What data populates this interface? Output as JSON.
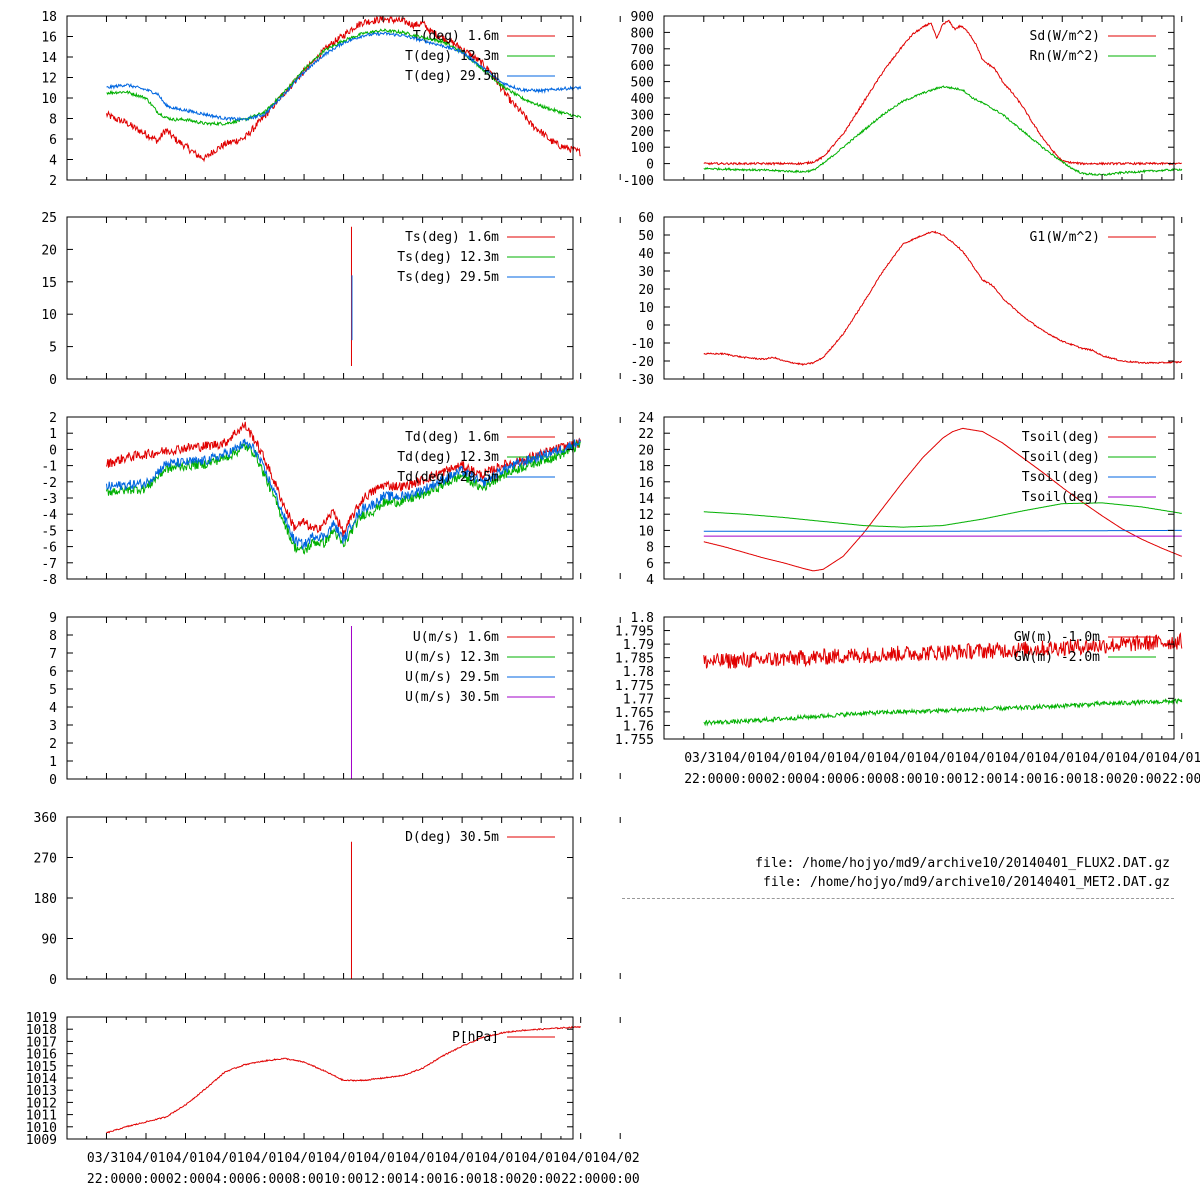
{
  "chart_data": [
    {
      "id": "t",
      "type": "line",
      "ylim": [
        2,
        18
      ],
      "yticks": [
        2,
        4,
        6,
        8,
        10,
        12,
        14,
        16,
        18
      ],
      "series": [
        {
          "name": "T(deg)  1.6m",
          "color": "#e00000",
          "noise": 0.35,
          "x": [
            0,
            0.4,
            1,
            1.4,
            2,
            2.6,
            3,
            3.2,
            3.6,
            4,
            4.6,
            5,
            5.4,
            6,
            7,
            8,
            9,
            10,
            11,
            11.4,
            12,
            12.5,
            13,
            14,
            15,
            15.6,
            16,
            16.4,
            17,
            17.5,
            18,
            19,
            19.5,
            20,
            20.5,
            21,
            21.5,
            22,
            22.5,
            23,
            23.5,
            24
          ],
          "y": [
            8.4,
            8,
            7.6,
            7.1,
            6.5,
            5.8,
            6.9,
            6.5,
            5.8,
            5.3,
            4.4,
            4.1,
            4.8,
            5.5,
            6.1,
            8.2,
            10.5,
            12.6,
            14.6,
            15.3,
            16.1,
            16.9,
            17.4,
            17.7,
            17.5,
            17.1,
            17.3,
            16.5,
            15.9,
            15.4,
            14.8,
            13.4,
            12.4,
            10.9,
            9.6,
            8.6,
            7.4,
            6.7,
            5.8,
            5.3,
            5,
            4.7
          ]
        },
        {
          "name": "T(deg) 12.3m",
          "color": "#00b000",
          "noise": 0.15,
          "x": [
            0,
            1,
            2,
            2.6,
            3,
            3.4,
            4,
            5,
            6,
            7,
            8,
            9,
            10,
            11,
            12,
            13,
            14,
            15,
            16,
            17,
            18,
            19,
            20,
            21,
            22,
            23,
            24
          ],
          "y": [
            10.5,
            10.6,
            10,
            8.6,
            8.1,
            7.9,
            7.9,
            7.5,
            7.5,
            7.9,
            8.6,
            10.6,
            12.8,
            14.6,
            15.6,
            16.3,
            16.6,
            16.4,
            15.9,
            15.5,
            14.5,
            12.9,
            11.2,
            10,
            9.2,
            8.6,
            8.1
          ]
        },
        {
          "name": "T(deg) 29.5m",
          "color": "#0066e0",
          "noise": 0.15,
          "x": [
            0,
            1,
            1.4,
            2,
            2.6,
            3,
            3.4,
            4,
            5,
            6,
            7,
            8,
            9,
            10,
            11,
            12,
            13,
            14,
            15,
            16,
            17,
            18,
            19,
            20,
            21,
            22,
            23,
            24
          ],
          "y": [
            11,
            11.3,
            11.1,
            10.8,
            10.4,
            9.3,
            9,
            8.8,
            8.4,
            8,
            7.9,
            8.4,
            10.4,
            12.5,
            14.2,
            15.4,
            16.1,
            16.3,
            16.1,
            15.6,
            15.1,
            14.5,
            13,
            11.5,
            10.8,
            10.7,
            10.9,
            11
          ]
        }
      ]
    },
    {
      "id": "sd",
      "type": "line",
      "ylim": [
        -100,
        900
      ],
      "yticks": [
        -100,
        0,
        100,
        200,
        300,
        400,
        500,
        600,
        700,
        800,
        900
      ],
      "series": [
        {
          "name": "Sd(W/m^2)",
          "color": "#e00000",
          "noise": 6,
          "x": [
            0,
            5,
            5.5,
            6,
            7,
            8,
            9,
            10,
            10.5,
            11,
            11.4,
            11.7,
            12,
            12.3,
            12.6,
            12.9,
            13.3,
            13.7,
            14,
            14.6,
            15,
            15.5,
            16,
            16.5,
            17,
            17.5,
            18,
            18.5,
            19,
            24
          ],
          "y": [
            0,
            0,
            10,
            40,
            180,
            370,
            560,
            720,
            790,
            830,
            860,
            760,
            850,
            870,
            820,
            840,
            800,
            720,
            630,
            580,
            500,
            430,
            350,
            250,
            160,
            80,
            15,
            5,
            0,
            0
          ]
        },
        {
          "name": "Rn(W/m^2)",
          "color": "#00b000",
          "noise": 6,
          "x": [
            0,
            3,
            5,
            5.5,
            6,
            7,
            8,
            9,
            10,
            11,
            11.5,
            12,
            12.5,
            13,
            13.5,
            14,
            15,
            16,
            17,
            18,
            18.5,
            19,
            20,
            21,
            24
          ],
          "y": [
            -30,
            -40,
            -50,
            -40,
            0,
            100,
            200,
            300,
            380,
            430,
            450,
            470,
            460,
            450,
            400,
            370,
            300,
            200,
            100,
            10,
            -30,
            -60,
            -70,
            -55,
            -35
          ]
        }
      ]
    },
    {
      "id": "ts",
      "type": "line",
      "ylim": [
        0,
        25
      ],
      "yticks": [
        0,
        5,
        10,
        15,
        20,
        25
      ],
      "spike": {
        "x": 12.4,
        "segments": [
          {
            "color": "#e00000",
            "y0": 2,
            "y1": 23.5
          },
          {
            "color": "#0066e0",
            "y0": 6,
            "y1": 16
          }
        ]
      },
      "series": [
        {
          "name": "Ts(deg)  1.6m",
          "color": "#e00000"
        },
        {
          "name": "Ts(deg) 12.3m",
          "color": "#00b000"
        },
        {
          "name": "Ts(deg) 29.5m",
          "color": "#0066e0"
        }
      ]
    },
    {
      "id": "g1",
      "type": "line",
      "ylim": [
        -30,
        60
      ],
      "yticks": [
        -30,
        -20,
        -10,
        0,
        10,
        20,
        30,
        40,
        50,
        60
      ],
      "series": [
        {
          "name": "G1(W/m^2)",
          "color": "#e00000",
          "noise": 0.4,
          "x": [
            0,
            1,
            2,
            3,
            3.5,
            4,
            5,
            5.5,
            6,
            7,
            8,
            9,
            10,
            11,
            11.5,
            12,
            12.5,
            13,
            14,
            14.5,
            15,
            16,
            17,
            18,
            19,
            19.5,
            20,
            21,
            22,
            23,
            24
          ],
          "y": [
            -16,
            -16,
            -18,
            -19,
            -18,
            -20,
            -22,
            -21,
            -18,
            -5,
            12,
            30,
            45,
            50,
            52,
            50,
            46,
            41,
            25,
            22,
            15,
            5,
            -3,
            -9,
            -13,
            -14,
            -17,
            -20,
            -21,
            -21,
            -20.5
          ]
        }
      ]
    },
    {
      "id": "td",
      "type": "line",
      "ylim": [
        -8,
        2
      ],
      "yticks": [
        -8,
        -7,
        -6,
        -5,
        -4,
        -3,
        -2,
        -1,
        0,
        1,
        2
      ],
      "series": [
        {
          "name": "Td(deg)  1.6m",
          "color": "#e00000",
          "noise": 0.3,
          "x": [
            0,
            1,
            2,
            3,
            4,
            5,
            6,
            6.5,
            7,
            7.5,
            8,
            8.5,
            9,
            9.5,
            10,
            10.5,
            11,
            11.5,
            12,
            12.5,
            13,
            13.5,
            14,
            15,
            16,
            17,
            18,
            19,
            20,
            21,
            22,
            23,
            24
          ],
          "y": [
            -0.9,
            -0.5,
            -0.3,
            -0.1,
            0.1,
            0.2,
            0.4,
            1,
            1.5,
            0.6,
            -0.6,
            -2,
            -3.5,
            -4.8,
            -4.5,
            -5,
            -4.6,
            -3.8,
            -5.2,
            -4,
            -3,
            -2.6,
            -2.2,
            -2.3,
            -1.9,
            -1.4,
            -1,
            -1.6,
            -1,
            -0.7,
            -0.3,
            0.1,
            0.4
          ]
        },
        {
          "name": "Td(deg) 12.3m",
          "color": "#00b000",
          "noise": 0.3,
          "x": [
            0,
            1,
            2,
            3,
            4,
            5,
            6,
            6.5,
            7,
            7.5,
            8,
            8.5,
            9,
            9.5,
            10,
            10.5,
            11,
            11.5,
            12,
            12.5,
            13,
            13.5,
            14,
            15,
            16,
            17,
            18,
            19,
            20,
            21,
            22,
            23,
            24
          ],
          "y": [
            -2.6,
            -2.5,
            -2.4,
            -1.2,
            -1,
            -0.9,
            -0.5,
            -0.2,
            0.2,
            -0.2,
            -1.6,
            -3,
            -4.5,
            -6,
            -6.3,
            -5.7,
            -5.8,
            -5,
            -6,
            -4.8,
            -4,
            -3.8,
            -3.3,
            -3.2,
            -2.8,
            -2.2,
            -1.6,
            -2.4,
            -1.6,
            -1.1,
            -0.7,
            -0.3,
            0.3
          ]
        },
        {
          "name": "Td(deg) 29.5m",
          "color": "#0066e0",
          "noise": 0.3,
          "x": [
            0,
            1,
            2,
            3,
            4,
            5,
            6,
            6.5,
            7,
            7.5,
            8,
            8.5,
            9,
            9.5,
            10,
            10.5,
            11,
            11.5,
            12,
            12.5,
            13,
            13.5,
            14,
            15,
            16,
            17,
            18,
            19,
            20,
            21,
            22,
            23,
            24
          ],
          "y": [
            -2.3,
            -2.2,
            -2.1,
            -0.9,
            -0.8,
            -0.7,
            -0.3,
            0,
            0.4,
            0,
            -1.3,
            -2.6,
            -4.2,
            -5.6,
            -5.9,
            -5.3,
            -5.4,
            -4.6,
            -5.6,
            -4.4,
            -3.6,
            -3.4,
            -2.9,
            -2.9,
            -2.5,
            -1.9,
            -1.3,
            -2.1,
            -1.3,
            -0.8,
            -0.4,
            0,
            0.5
          ]
        }
      ]
    },
    {
      "id": "tsoil",
      "type": "line",
      "ylim": [
        4,
        24
      ],
      "yticks": [
        4,
        6,
        8,
        10,
        12,
        14,
        16,
        18,
        20,
        22,
        24
      ],
      "series": [
        {
          "name": "Tsoil(deg)",
          "color": "#e00000",
          "noise": 0,
          "x": [
            0,
            1,
            2,
            3,
            4,
            5,
            5.5,
            6,
            7,
            8,
            9,
            10,
            11,
            12,
            12.5,
            13,
            14,
            15,
            16,
            17,
            18,
            19,
            20,
            21,
            22,
            23,
            24
          ],
          "y": [
            8.6,
            8,
            7.3,
            6.6,
            6,
            5.3,
            5,
            5.2,
            6.8,
            9.6,
            12.8,
            16,
            19,
            21.4,
            22.2,
            22.6,
            22.2,
            20.8,
            19,
            17.2,
            15.3,
            13.5,
            11.8,
            10.2,
            8.9,
            7.8,
            6.8
          ]
        },
        {
          "name": "Tsoil(deg)",
          "color": "#00b000",
          "noise": 0,
          "x": [
            0,
            2,
            4,
            6,
            8,
            10,
            12,
            14,
            16,
            18,
            20,
            22,
            24
          ],
          "y": [
            12.3,
            12,
            11.6,
            11.1,
            10.6,
            10.4,
            10.6,
            11.4,
            12.4,
            13.3,
            13.4,
            12.9,
            12.1
          ]
        },
        {
          "name": "Tsoil(deg)",
          "color": "#0066e0",
          "noise": 0,
          "x": [
            0,
            12,
            24
          ],
          "y": [
            9.9,
            9.9,
            10
          ]
        },
        {
          "name": "Tsoil(deg)",
          "color": "#a000c8",
          "noise": 0,
          "x": [
            0,
            12,
            24
          ],
          "y": [
            9.3,
            9.3,
            9.3
          ]
        }
      ]
    },
    {
      "id": "u",
      "type": "line",
      "ylim": [
        0,
        9
      ],
      "yticks": [
        0,
        1,
        2,
        3,
        4,
        5,
        6,
        7,
        8,
        9
      ],
      "spike": {
        "x": 12.4,
        "segments": [
          {
            "color": "#a000c8",
            "y0": 0,
            "y1": 8.5
          }
        ]
      },
      "series": [
        {
          "name": "U(m/s)  1.6m",
          "color": "#e00000"
        },
        {
          "name": "U(m/s) 12.3m",
          "color": "#00b000"
        },
        {
          "name": "U(m/s) 29.5m",
          "color": "#0066e0"
        },
        {
          "name": "U(m/s) 30.5m",
          "color": "#a000c8"
        }
      ]
    },
    {
      "id": "gw",
      "type": "line",
      "ylim": [
        1.755,
        1.8
      ],
      "yticks": [
        1.755,
        1.76,
        1.765,
        1.77,
        1.775,
        1.78,
        1.785,
        1.79,
        1.795,
        1.8
      ],
      "series": [
        {
          "name": "GW(m) -1.0m",
          "color": "#e00000",
          "noise": 0.003,
          "x": [
            0,
            4,
            8,
            12,
            16,
            20,
            24
          ],
          "y": [
            1.7835,
            1.7845,
            1.786,
            1.787,
            1.788,
            1.7895,
            1.791
          ]
        },
        {
          "name": "GW(m) -2.0m",
          "color": "#00b000",
          "noise": 0.0008,
          "x": [
            0,
            2,
            4,
            8,
            12,
            16,
            20,
            24
          ],
          "y": [
            1.761,
            1.7615,
            1.7625,
            1.7645,
            1.7655,
            1.7665,
            1.768,
            1.769
          ]
        }
      ]
    },
    {
      "id": "d",
      "type": "line",
      "ylim": [
        0,
        360
      ],
      "yticks": [
        0,
        90,
        180,
        270,
        360
      ],
      "spike": {
        "x": 12.4,
        "segments": [
          {
            "color": "#e00000",
            "y0": 0,
            "y1": 305
          }
        ]
      },
      "series": [
        {
          "name": "D(deg)  30.5m",
          "color": "#e00000"
        }
      ]
    },
    {
      "id": "p",
      "type": "line",
      "ylim": [
        1009,
        1019
      ],
      "yticks": [
        1009,
        1010,
        1011,
        1012,
        1013,
        1014,
        1015,
        1016,
        1017,
        1018,
        1019
      ],
      "series": [
        {
          "name": "P[hPa]",
          "color": "#e00000",
          "noise": 0.05,
          "x": [
            0,
            1,
            2,
            3,
            4,
            5,
            6,
            7,
            8,
            9,
            10,
            11,
            12,
            13,
            14,
            15,
            16,
            17,
            18,
            19,
            20,
            21,
            22,
            23,
            24
          ],
          "y": [
            1009.5,
            1010,
            1010.4,
            1010.8,
            1011.8,
            1013.1,
            1014.5,
            1015.1,
            1015.4,
            1015.6,
            1015.3,
            1014.6,
            1013.8,
            1013.8,
            1014,
            1014.2,
            1014.8,
            1015.8,
            1016.6,
            1017.3,
            1017.7,
            1017.9,
            1018,
            1018.1,
            1018.2
          ]
        }
      ]
    }
  ],
  "x_axis": {
    "date_labels": [
      "03/31",
      "04/01",
      "04/01",
      "04/01",
      "04/01",
      "04/01",
      "04/01",
      "04/01",
      "04/01",
      "04/01",
      "04/01",
      "04/01",
      "04/01",
      "04/02"
    ],
    "time_labels": [
      "22:00",
      "00:00",
      "02:00",
      "04:00",
      "06:00",
      "08:00",
      "10:00",
      "12:00",
      "14:00",
      "16:00",
      "18:00",
      "20:00",
      "22:00",
      "00:00"
    ]
  },
  "files": {
    "line1": "file: /home/hojyo/md9/archive10/20140401_FLUX2.DAT.gz",
    "line2": "file: /home/hojyo/md9/archive10/20140401_MET2.DAT.gz"
  }
}
